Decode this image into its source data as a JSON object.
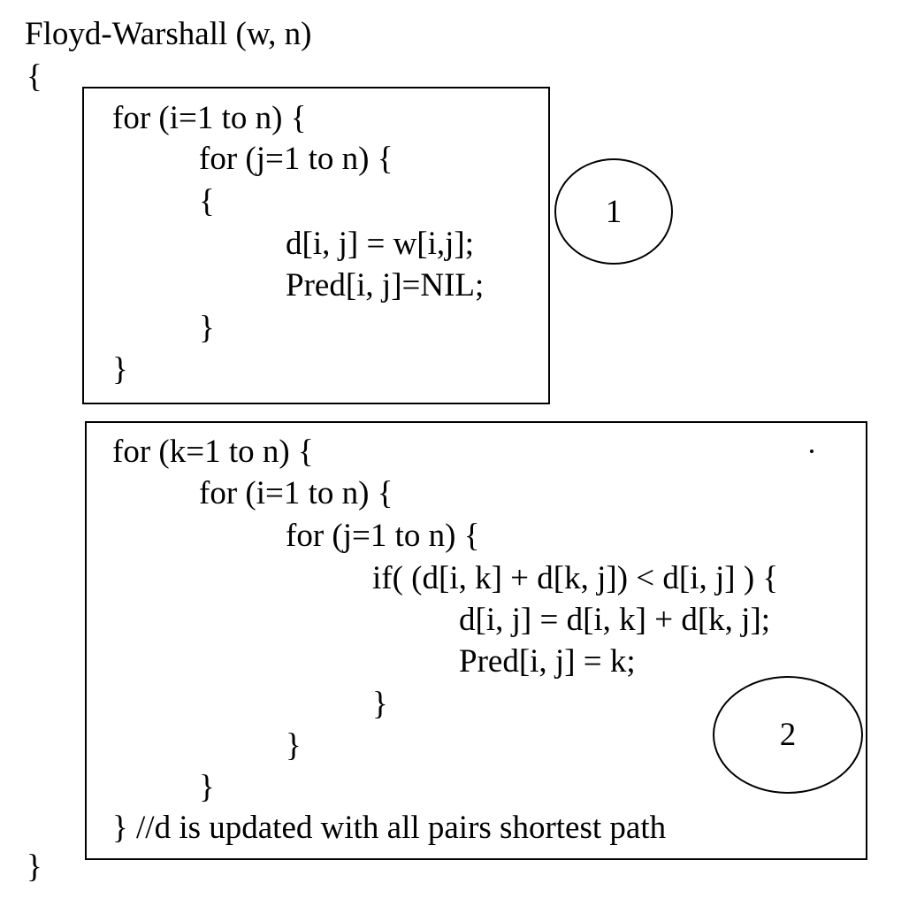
{
  "header": {
    "signature": "Floyd-Warshall (w, n)",
    "open_brace": "{"
  },
  "block1": {
    "lines": [
      "for (i=1 to n) {",
      "for (j=1 to n) {",
      "{",
      "d[i, j] = w[i,j];",
      "Pred[i, j]=NIL;",
      "}",
      "}"
    ],
    "marker": "1"
  },
  "block2": {
    "lines": [
      "for (k=1 to n) {",
      "for (i=1 to n) {",
      "for (j=1 to n) {",
      "if( (d[i, k] + d[k, j]) < d[i, j] ) {",
      "d[i, j] = d[i, k] + d[k, j];",
      "Pred[i, j] = k;",
      "}",
      "}",
      "}",
      "} //d is updated with all pairs shortest path"
    ],
    "marker": "2"
  },
  "footer": {
    "close_brace": "}"
  }
}
